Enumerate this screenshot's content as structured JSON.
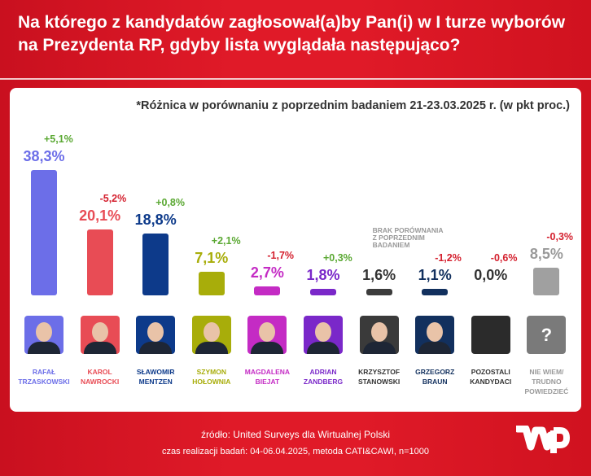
{
  "title": "Na którego z kandydatów zagłosował(a)by Pan(i) w I turze wyborów na Prezydenta RP, gdyby lista wyglądała następująco?",
  "chart_data": {
    "type": "bar",
    "note": "*Różnica w porównaniu z poprzednim badaniem 21-23.03.2025 r. (w pkt proc.)",
    "categories": [
      "RAFAŁ\nTRZASKOWSKI",
      "KAROL\nNAWROCKI",
      "SŁAWOMIR\nMENTZEN",
      "SZYMON\nHOŁOWNIA",
      "MAGDALENA\nBIEJAT",
      "ADRIAN\nZANDBERG",
      "KRZYSZTOF\nSTANOWSKI",
      "GRZEGORZ\nBRAUN",
      "POZOSTALI\nKANDYDACI",
      "NIE WIEM/\nTRUDNO\nPOWIEDZIEĆ"
    ],
    "values": [
      38.3,
      20.1,
      18.8,
      7.1,
      2.7,
      1.8,
      1.6,
      1.1,
      0.0,
      8.5
    ],
    "value_labels": [
      "38,3%",
      "20,1%",
      "18,8%",
      "7,1%",
      "2,7%",
      "1,8%",
      "1,6%",
      "1,1%",
      "0,0%",
      "8,5%"
    ],
    "deltas": [
      "+5,1%",
      "-5,2%",
      "+0,8%",
      "+2,1%",
      "-1,7%",
      "+0,3%",
      null,
      "-1,2%",
      "-0,6%",
      "-0,3%"
    ],
    "no_comparison_label": "BRAK PORÓWNANIA Z POPRZEDNIM BADANIEM",
    "colors": [
      "#6c6ee8",
      "#e84c55",
      "#0d3a8a",
      "#a8ad0a",
      "#c42bc4",
      "#7a28c9",
      "#3c3c3c",
      "#12305e",
      "#2b2b2b",
      "#a0a0a0"
    ],
    "ylim": [
      0,
      40
    ],
    "grid": false
  },
  "footer": {
    "source": "źródło: United Surveys dla Wirtualnej Polski",
    "method": "czas realizacji badań: 04-06.04.2025, metoda CATI&CAWI, n=1000"
  },
  "logo": "WP",
  "unknown_icon": "?"
}
